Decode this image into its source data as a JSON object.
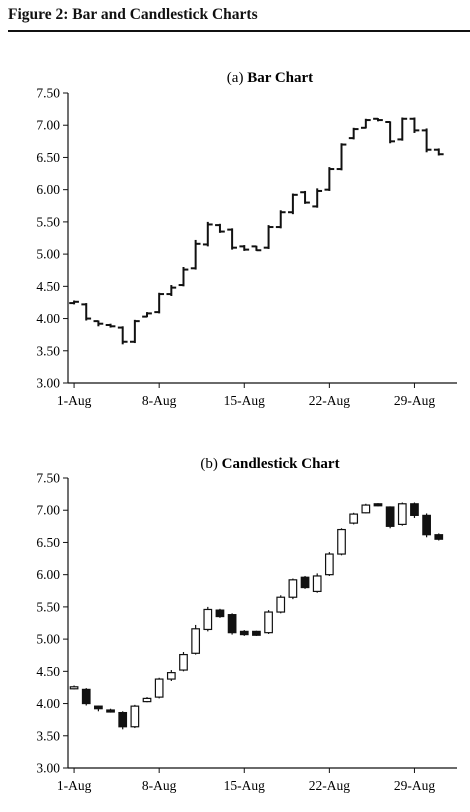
{
  "figure": {
    "title": "Figure 2: Bar and Candlestick Charts"
  },
  "chart_data": [
    {
      "type": "bar",
      "subtype": "ohlc",
      "title_prefix": "(a) ",
      "title_main": "Bar Chart",
      "xlabel": "",
      "ylabel": "",
      "ylim": [
        3.0,
        7.5
      ],
      "yticks": [
        "3.00",
        "3.50",
        "4.00",
        "4.50",
        "5.00",
        "5.50",
        "6.00",
        "6.50",
        "7.00",
        "7.50"
      ],
      "xticks": [
        {
          "day": 1,
          "label": "1-Aug"
        },
        {
          "day": 8,
          "label": "8-Aug"
        },
        {
          "day": 15,
          "label": "15-Aug"
        },
        {
          "day": 22,
          "label": "22-Aug"
        },
        {
          "day": 29,
          "label": "29-Aug"
        }
      ],
      "xlim_days": [
        0.5,
        32.5
      ],
      "grid": false,
      "legend": "none"
    },
    {
      "type": "candlestick",
      "title_prefix": "(b) ",
      "title_main": "Candlestick Chart",
      "xlabel": "",
      "ylabel": "",
      "ylim": [
        3.0,
        7.5
      ],
      "yticks": [
        "3.00",
        "3.50",
        "4.00",
        "4.50",
        "5.00",
        "5.50",
        "6.00",
        "6.50",
        "7.00",
        "7.50"
      ],
      "xticks": [
        {
          "day": 1,
          "label": "1-Aug"
        },
        {
          "day": 8,
          "label": "8-Aug"
        },
        {
          "day": 15,
          "label": "15-Aug"
        },
        {
          "day": 22,
          "label": "22-Aug"
        },
        {
          "day": 29,
          "label": "29-Aug"
        }
      ],
      "xlim_days": [
        0.5,
        32.5
      ],
      "grid": false,
      "legend": "none",
      "up_color": "#ffffff",
      "down_color": "#111111"
    }
  ],
  "ohlc": [
    {
      "day": 1,
      "open": 4.24,
      "high": 4.28,
      "low": 4.22,
      "close": 4.26
    },
    {
      "day": 2,
      "open": 4.22,
      "high": 4.24,
      "low": 3.97,
      "close": 4.0
    },
    {
      "day": 3,
      "open": 3.96,
      "high": 3.97,
      "low": 3.88,
      "close": 3.92
    },
    {
      "day": 4,
      "open": 3.9,
      "high": 3.92,
      "low": 3.86,
      "close": 3.88
    },
    {
      "day": 5,
      "open": 3.86,
      "high": 3.88,
      "low": 3.6,
      "close": 3.64
    },
    {
      "day": 6,
      "open": 3.64,
      "high": 3.98,
      "low": 3.62,
      "close": 3.96
    },
    {
      "day": 7,
      "open": 4.03,
      "high": 4.1,
      "low": 4.02,
      "close": 4.08
    },
    {
      "day": 8,
      "open": 4.1,
      "high": 4.4,
      "low": 4.08,
      "close": 4.38
    },
    {
      "day": 9,
      "open": 4.38,
      "high": 4.52,
      "low": 4.35,
      "close": 4.48
    },
    {
      "day": 10,
      "open": 4.52,
      "high": 4.8,
      "low": 4.5,
      "close": 4.76
    },
    {
      "day": 11,
      "open": 4.78,
      "high": 5.22,
      "low": 4.76,
      "close": 5.16
    },
    {
      "day": 12,
      "open": 5.15,
      "high": 5.5,
      "low": 5.12,
      "close": 5.46
    },
    {
      "day": 13,
      "open": 5.45,
      "high": 5.47,
      "low": 5.33,
      "close": 5.35
    },
    {
      "day": 14,
      "open": 5.38,
      "high": 5.4,
      "low": 5.07,
      "close": 5.1
    },
    {
      "day": 15,
      "open": 5.12,
      "high": 5.14,
      "low": 5.05,
      "close": 5.07
    },
    {
      "day": 16,
      "open": 5.12,
      "high": 5.13,
      "low": 5.05,
      "close": 5.06
    },
    {
      "day": 17,
      "open": 5.1,
      "high": 5.45,
      "low": 5.08,
      "close": 5.42
    },
    {
      "day": 18,
      "open": 5.42,
      "high": 5.68,
      "low": 5.4,
      "close": 5.65
    },
    {
      "day": 19,
      "open": 5.65,
      "high": 5.94,
      "low": 5.62,
      "close": 5.92
    },
    {
      "day": 20,
      "open": 5.96,
      "high": 5.98,
      "low": 5.78,
      "close": 5.8
    },
    {
      "day": 21,
      "open": 5.74,
      "high": 6.02,
      "low": 5.72,
      "close": 5.98
    },
    {
      "day": 22,
      "open": 6.0,
      "high": 6.35,
      "low": 5.98,
      "close": 6.32
    },
    {
      "day": 23,
      "open": 6.32,
      "high": 6.72,
      "low": 6.3,
      "close": 6.7
    },
    {
      "day": 24,
      "open": 6.8,
      "high": 6.96,
      "low": 6.78,
      "close": 6.94
    },
    {
      "day": 25,
      "open": 6.96,
      "high": 7.1,
      "low": 6.95,
      "close": 7.08
    },
    {
      "day": 26,
      "open": 7.1,
      "high": 7.11,
      "low": 7.06,
      "close": 7.08
    },
    {
      "day": 27,
      "open": 7.05,
      "high": 7.06,
      "low": 6.72,
      "close": 6.75
    },
    {
      "day": 28,
      "open": 6.78,
      "high": 7.12,
      "low": 6.76,
      "close": 7.1
    },
    {
      "day": 29,
      "open": 7.1,
      "high": 7.12,
      "low": 6.88,
      "close": 6.92
    },
    {
      "day": 30,
      "open": 6.92,
      "high": 6.95,
      "low": 6.58,
      "close": 6.62
    },
    {
      "day": 31,
      "open": 6.62,
      "high": 6.64,
      "low": 6.53,
      "close": 6.55
    }
  ]
}
